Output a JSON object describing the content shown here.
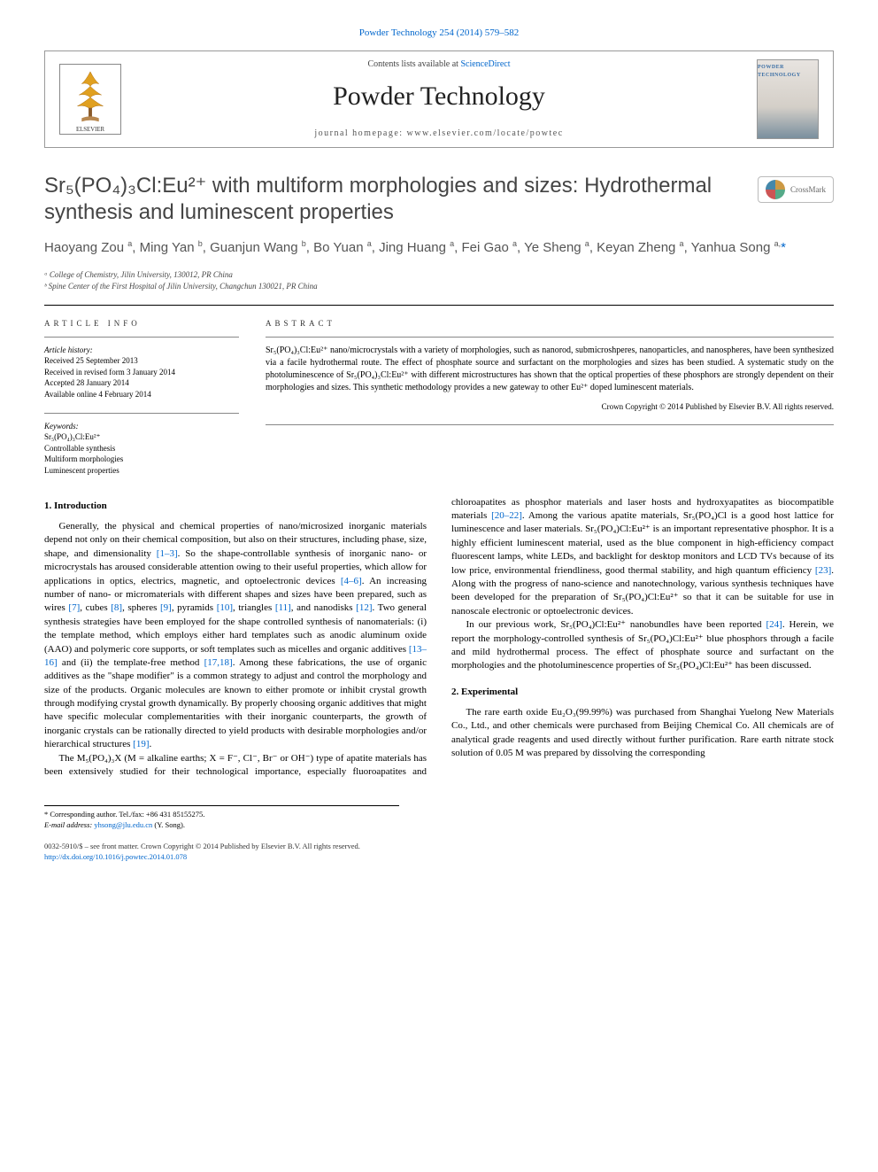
{
  "top_citation": "Powder Technology 254 (2014) 579–582",
  "header": {
    "contents_line_prefix": "Contents lists available at ",
    "contents_link": "ScienceDirect",
    "journal_title": "Powder Technology",
    "homepage_prefix": "journal homepage: ",
    "homepage_url": "www.elsevier.com/locate/powtec",
    "publisher_logo_alt": "ELSEVIER",
    "cover_label": "POWDER TECHNOLOGY"
  },
  "crossmark_label": "CrossMark",
  "title": "Sr₅(PO₄)₃Cl:Eu²⁺ with multiform morphologies and sizes: Hydrothermal synthesis and luminescent properties",
  "authors_html": "Haoyang Zou <sup>a</sup>, Ming Yan <sup>b</sup>, Guanjun Wang <sup>b</sup>, Bo Yuan <sup>a</sup>, Jing Huang <sup>a</sup>, Fei Gao <sup>a</sup>, Ye Sheng <sup>a</sup>, Keyan Zheng <sup>a</sup>, Yanhua Song <sup>a,</sup>",
  "corr_mark": "*",
  "affiliations": [
    "ᵃ College of Chemistry, Jilin University, 130012, PR China",
    "ᵇ Spine Center of the First Hospital of Jilin University, Changchun 130021, PR China"
  ],
  "info": {
    "section_label": "ARTICLE INFO",
    "history_label": "Article history:",
    "history": [
      "Received 25 September 2013",
      "Received in revised form 3 January 2014",
      "Accepted 28 January 2014",
      "Available online 4 February 2014"
    ],
    "keywords_label": "Keywords:",
    "keywords": [
      "Sr₅(PO₄)₃Cl:Eu²⁺",
      "Controllable synthesis",
      "Multiform morphologies",
      "Luminescent properties"
    ]
  },
  "abstract": {
    "section_label": "ABSTRACT",
    "text": "Sr₅(PO₄)₃Cl:Eu²⁺ nano/microcrystals with a variety of morphologies, such as nanorod, submicroshperes, nanoparticles, and nanospheres, have been synthesized via a facile hydrothermal route. The effect of phosphate source and surfactant on the morphologies and sizes has been studied. A systematic study on the photoluminescence of Sr₅(PO₄)₃Cl:Eu²⁺ with different microstructures has shown that the optical properties of these phosphors are strongly dependent on their morphologies and sizes. This synthetic methodology provides a new gateway to other Eu²⁺ doped luminescent materials.",
    "copyright": "Crown Copyright © 2014 Published by Elsevier B.V. All rights reserved."
  },
  "sections": {
    "intro_heading": "1. Introduction",
    "intro_p1_pre": "Generally, the physical and chemical properties of nano/microsized inorganic materials depend not only on their chemical composition, but also on their structures, including phase, size, shape, and dimensionality ",
    "ref_1_3": "[1–3]",
    "intro_p1_a": ". So the shape-controllable synthesis of inorganic nano- or microcrystals has aroused considerable attention owing to their useful properties, which allow for applications in optics, electrics, magnetic, and optoelectronic devices ",
    "ref_4_6": "[4–6]",
    "intro_p1_b": ". An increasing number of nano- or micromaterials with different shapes and sizes have been prepared, such as wires ",
    "ref_7": "[7]",
    "intro_p1_c": ", cubes ",
    "ref_8": "[8]",
    "intro_p1_d": ", spheres ",
    "ref_9": "[9]",
    "intro_p1_e": ", pyramids ",
    "ref_10": "[10]",
    "intro_p1_f": ", triangles ",
    "ref_11": "[11]",
    "intro_p1_g": ", and nanodisks ",
    "ref_12": "[12]",
    "intro_p1_h": ". Two general synthesis strategies have been employed for the shape controlled synthesis of nanomaterials: (i) the template method, which employs either hard templates such as anodic aluminum oxide (AAO) and polymeric core supports, or soft templates such as micelles and organic additives ",
    "ref_13_16": "[13–16]",
    "intro_p1_i": " and (ii) the template-free method ",
    "ref_17_18": "[17,18]",
    "intro_p1_j": ". Among these fabrications, the use of organic additives as the \"shape modifier\" is a common strategy to adjust and control the morphology and size of the products. Organic molecules are known to either promote or inhibit crystal growth through modifying crystal growth dynamically. By properly choosing organic additives that might have specific molecular complementarities with their inorganic counterparts, the growth of inorganic crystals can be rationally directed to yield products with desirable morphologies and/or hierarchical structures ",
    "ref_19": "[19]",
    "intro_p1_k": ".",
    "col2_p1_pre": "The M₅(PO₄)₃X (M = alkaline earths; X = F⁻, Cl⁻, Br⁻ or OH⁻) type of apatite materials has been extensively studied for their technological importance, especially fluoroapatites and chloroapatites as phosphor materials and laser hosts and hydroxyapatites as biocompatible materials ",
    "ref_20_22": "[20–22]",
    "col2_p1_a": ". Among the various apatite materials, Sr₅(PO₄)Cl is a good host lattice for luminescence and laser materials. Sr₅(PO₄)Cl:Eu²⁺ is an important representative phosphor. It is a highly efficient luminescent material, used as the blue component in high-efficiency compact fluorescent lamps, white LEDs, and backlight for desktop monitors and LCD TVs because of its low price, environmental friendliness, good thermal stability, and high quantum efficiency ",
    "ref_23": "[23]",
    "col2_p1_b": ". Along with the progress of nano-science and nanotechnology, various synthesis techniques have been developed for the preparation of Sr₅(PO₄)Cl:Eu²⁺ so that it can be suitable for use in nanoscale electronic or optoelectronic devices.",
    "col2_p2_pre": "In our previous work, Sr₅(PO₄)Cl:Eu²⁺ nanobundles have been reported ",
    "ref_24": "[24]",
    "col2_p2_a": ". Herein, we report the morphology-controlled synthesis of Sr₅(PO₄)Cl:Eu²⁺ blue phosphors through a facile and mild hydrothermal process. The effect of phosphate source and surfactant on the morphologies and the photoluminescence properties of Sr₅(PO₄)Cl:Eu²⁺ has been discussed.",
    "exp_heading": "2. Experimental",
    "exp_p1": "The rare earth oxide Eu₂O₃(99.99%) was purchased from Shanghai Yuelong New Materials Co., Ltd., and other chemicals were purchased from Beijing Chemical Co. All chemicals are of analytical grade reagents and used directly without further purification. Rare earth nitrate stock solution of 0.05 M was prepared by dissolving the corresponding"
  },
  "footer": {
    "corr_label": "* Corresponding author. Tel./fax: +86 431 85155275.",
    "email_label": "E-mail address: ",
    "email": "yhsong@jlu.edu.cn",
    "email_who": " (Y. Song).",
    "issn_line": "0032-5910/$ – see front matter. Crown Copyright © 2014 Published by Elsevier B.V. All rights reserved.",
    "doi": "http://dx.doi.org/10.1016/j.powtec.2014.01.078"
  },
  "colors": {
    "link": "#0066cc",
    "text": "#000000",
    "muted": "#555555",
    "border": "#999999"
  }
}
